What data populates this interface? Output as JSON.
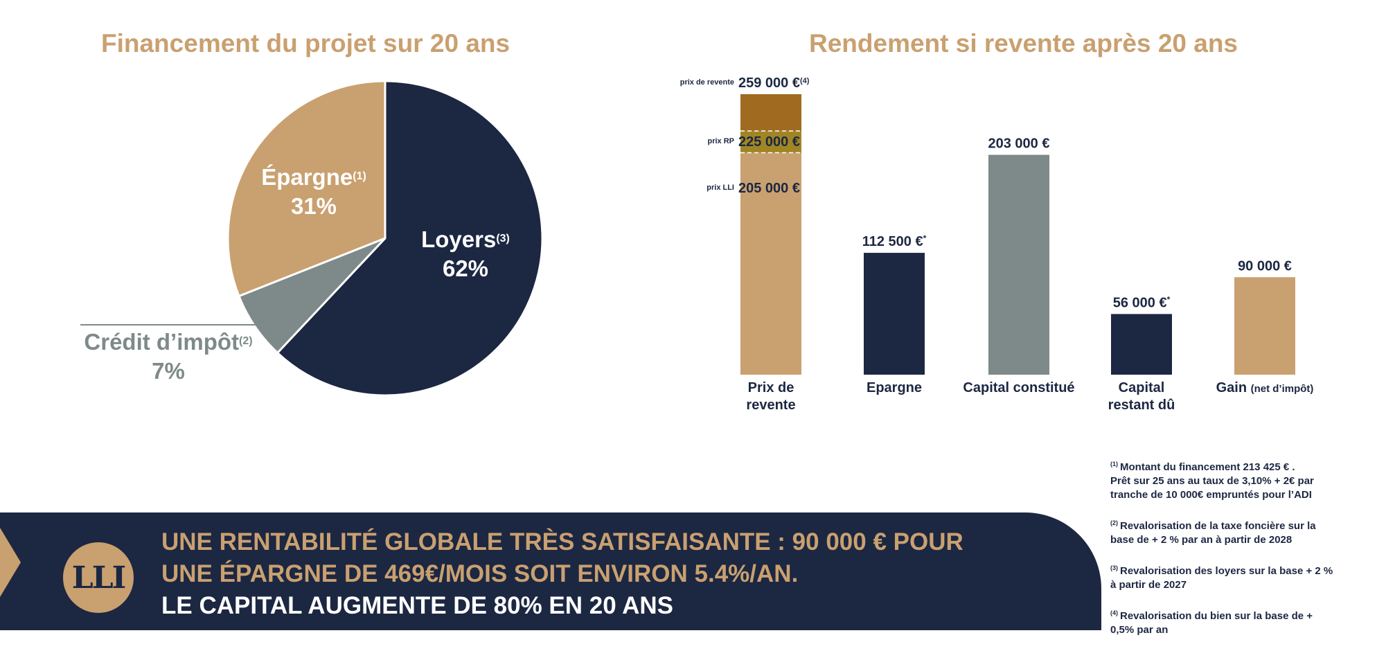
{
  "chart_data": [
    {
      "type": "pie",
      "title": "Financement du projet sur 20 ans",
      "slices": [
        {
          "label": "Loyers",
          "note": "(3)",
          "percent_label": "62%",
          "value": 62,
          "color": "#1c2742"
        },
        {
          "label": "Crédit d’impôt",
          "note": "(2)",
          "percent_label": "7%",
          "value": 7,
          "color": "#7d8a89"
        },
        {
          "label": "Épargne",
          "note": "(1)",
          "percent_label": "31%",
          "value": 31,
          "color": "#c9a070"
        }
      ]
    },
    {
      "type": "bar",
      "title": "Rendement si revente après 20 ans",
      "categories": [
        "Prix de revente",
        "Epargne",
        "Capital constitué",
        "Capital restant dû",
        "Gain (net d’impôt)"
      ],
      "category_display": [
        {
          "main": "Prix de",
          "line2": "revente",
          "small": ""
        },
        {
          "main": "Epargne",
          "line2": "",
          "small": ""
        },
        {
          "main": "Capital constitué",
          "line2": "",
          "small": ""
        },
        {
          "main": "Capital",
          "line2": "restant dû",
          "small": ""
        },
        {
          "main": "Gain ",
          "line2": "",
          "small": "(net d’impôt)"
        }
      ],
      "values": [
        259000,
        112500,
        203000,
        56000,
        90000
      ],
      "value_labels": [
        "",
        "112 500 €",
        "203 000 €",
        "56 000 €",
        "90 000 €"
      ],
      "value_label_marks": [
        "",
        "*",
        "",
        "*",
        ""
      ],
      "colors": [
        "#c9a070",
        "#1c2742",
        "#7d8a89",
        "#1c2742",
        "#c9a070"
      ],
      "stacked_first_bar": [
        {
          "name": "prix LLI",
          "value": 205000,
          "label": "205 000 €",
          "mark": "",
          "color": "#c9a070"
        },
        {
          "name": "prix RP",
          "value": 225000,
          "label": "225 000 €",
          "mark": "",
          "color": "#a08525"
        },
        {
          "name": "prix de revente",
          "value": 259000,
          "label": "259 000 €",
          "mark": "(4)",
          "color": "#a06b20"
        }
      ],
      "ylim": [
        0,
        259000
      ]
    }
  ],
  "banner": {
    "line1": "UNE RENTABILITÉ GLOBALE TRÈS SATISFAISANTE : 90 000 € POUR",
    "line2": "UNE ÉPARGNE DE 469€/MOIS SOIT ENVIRON 5.4%/AN.",
    "line3": "LE CAPITAL AUGMENTE DE 80% EN 20 ANS"
  },
  "logo_text": "LLI",
  "footnotes": [
    {
      "num": "(1)",
      "text": "Montant du financement  213 425 € .\nPrêt sur 25 ans au taux de 3,10% + 2€ par\ntranche de 10 000€ empruntés pour l’ADI"
    },
    {
      "num": "(2)",
      "text": "Revalorisation de la taxe foncière sur la\nbase de + 2 % par an à partir de  2028"
    },
    {
      "num": "(3)",
      "text": "Revalorisation des loyers sur la base + 2 %\nà partir de 2027"
    },
    {
      "num": "(4)",
      "text": "Revalorisation  du bien sur la base  de +\n0,5% par an"
    }
  ]
}
